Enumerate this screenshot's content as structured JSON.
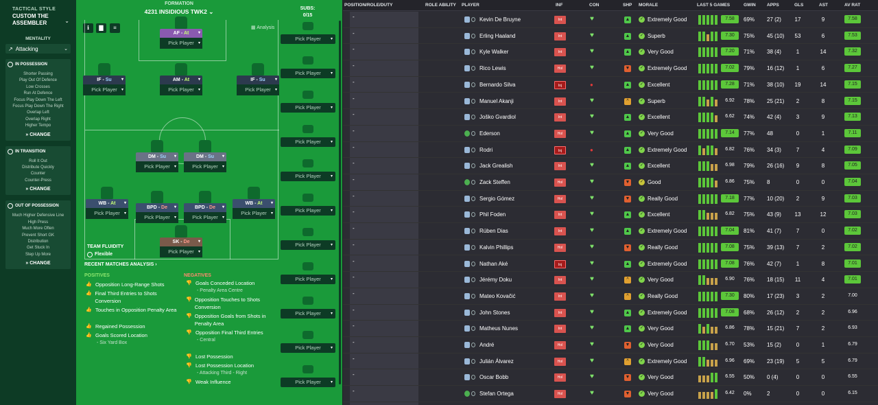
{
  "left_panel": {
    "subtitle": "TACTICAL STYLE",
    "title": "CUSTOM THE ASSEMBLER",
    "mentality_label": "MENTALITY",
    "mentality_value": "Attacking",
    "in_possession": {
      "header": "IN POSSESSION",
      "items": [
        "Shorter Passing",
        "Play Out Of Defence",
        "Low Crosses",
        "Run At Defence",
        "Focus Play Down The Left",
        "Focus Play Down The Right",
        "Overlap Left",
        "Overlap Right",
        "Higher Tempo"
      ],
      "change": "CHANGE"
    },
    "in_transition": {
      "header": "IN TRANSITION",
      "items": [
        "Roll It Out",
        "Distribute Quickly",
        "Counter",
        "Counter-Press"
      ],
      "change": "CHANGE"
    },
    "out_of_possession": {
      "header": "OUT OF POSSESSION",
      "items": [
        "Much Higher Defensive Line",
        "High Press",
        "Much More Often",
        "Prevent Short GK",
        "Distribution",
        "Get Stuck In",
        "Step Up More"
      ],
      "change": "CHANGE"
    }
  },
  "pitch": {
    "formation_label": "FORMATION",
    "formation_name": "4231 INSIDIOUS TWK2",
    "subs_label": "SUBS:",
    "subs_count": "0/15",
    "analysis_label": "Analysis",
    "pick_player": "Pick Player",
    "positions": [
      {
        "pos": "AF",
        "duty": "At",
        "duty_class": "at",
        "color": "#8a5ab0"
      },
      {
        "pos": "IF",
        "duty": "Su",
        "duty_class": "su",
        "color": "#2c3a4e"
      },
      {
        "pos": "AM",
        "duty": "At",
        "duty_class": "at",
        "color": "#2c3a4e"
      },
      {
        "pos": "IF",
        "duty": "Su",
        "duty_class": "su",
        "color": "#2c3a4e"
      },
      {
        "pos": "DM",
        "duty": "Su",
        "duty_class": "su",
        "color": "#6a7286"
      },
      {
        "pos": "DM",
        "duty": "Su",
        "duty_class": "su",
        "color": "#6a7286"
      },
      {
        "pos": "WB",
        "duty": "At",
        "duty_class": "at",
        "color": "#3b4f6e"
      },
      {
        "pos": "BPD",
        "duty": "De",
        "duty_class": "de",
        "color": "#3b4f6e"
      },
      {
        "pos": "BPD",
        "duty": "De",
        "duty_class": "de",
        "color": "#3b4f6e"
      },
      {
        "pos": "WB",
        "duty": "At",
        "duty_class": "at",
        "color": "#3b4f6e"
      },
      {
        "pos": "SK",
        "duty": "De",
        "duty_class": "de",
        "color": "#7a5a4a"
      }
    ],
    "sep": "-",
    "team_fluidity_label": "TEAM FLUIDITY",
    "team_fluidity_value": "Flexible",
    "recent_label": "RECENT MATCHES ANALYSIS ›",
    "positives_label": "POSITIVES",
    "negatives_label": "NEGATIVES",
    "positives": [
      {
        "text": "Opposition Long-Range Shots",
        "sub": ""
      },
      {
        "text": "Final Third Entries to Shots Conversion",
        "sub": ""
      },
      {
        "text": "Touches in Opposition Penalty Area",
        "sub": ""
      },
      {
        "text": "Regained Possession",
        "sub": ""
      },
      {
        "text": "Goals Scored Location",
        "sub": "- Six Yard Box"
      }
    ],
    "negatives": [
      {
        "text": "Goals Conceded Location",
        "sub": "- Penalty Area Centre"
      },
      {
        "text": "Opposition Touches to Shots Conversion",
        "sub": ""
      },
      {
        "text": "Opposition Goals from Shots in Penalty Area",
        "sub": ""
      },
      {
        "text": "Opposition Final Third Entries",
        "sub": "- Central"
      },
      {
        "text": "Lost Possession",
        "sub": ""
      },
      {
        "text": "Lost Possession Location",
        "sub": "- Attacking Third - Right"
      },
      {
        "text": "Weak Influence",
        "sub": ""
      }
    ]
  },
  "table": {
    "headers": [
      "POSITION/ROLE/DUTY",
      "ROLE ABILITY",
      "PLAYER",
      "INF",
      "CON",
      "SHP",
      "MORALE",
      "LAST 5 GAMES",
      "GWIN",
      "APPS",
      "GLS",
      "AST",
      "AV RAT"
    ],
    "dash": "-",
    "rows": [
      {
        "name": "Kevin De Bruyne",
        "inf": "Int",
        "inf_class": "i-int",
        "con": "heart",
        "shp": "up",
        "morale": "Extremely Good",
        "mor": "g",
        "bars": [
          "#5cc73a",
          "#5cc73a",
          "#5cc73a",
          "#5cc73a",
          "#5cc73a"
        ],
        "rating": "7.58",
        "rt": "green",
        "gwin": "69%",
        "apps": "27 (2)",
        "gls": "17",
        "ast": "9",
        "av": "7.58",
        "avc": "green",
        "gk": false
      },
      {
        "name": "Erling Haaland",
        "inf": "Int",
        "inf_class": "i-int",
        "con": "heart",
        "shp": "up",
        "morale": "Superb",
        "mor": "g",
        "bars": [
          "#5cc73a",
          "#5cc73a",
          "#c8a24a",
          "#5cc73a",
          "#5cc73a"
        ],
        "rating": "7.30",
        "rt": "green",
        "gwin": "75%",
        "apps": "45 (10)",
        "gls": "53",
        "ast": "6",
        "av": "7.53",
        "avc": "green",
        "gk": false
      },
      {
        "name": "Kyle Walker",
        "inf": "Int",
        "inf_class": "i-int",
        "con": "heart",
        "shp": "up",
        "morale": "Very Good",
        "mor": "g",
        "bars": [
          "#5cc73a",
          "#5cc73a",
          "#5cc73a",
          "#5cc73a",
          "#5cc73a"
        ],
        "rating": "7.20",
        "rt": "green",
        "gwin": "71%",
        "apps": "38 (4)",
        "gls": "1",
        "ast": "14",
        "av": "7.32",
        "avc": "green",
        "gk": false
      },
      {
        "name": "Rico Lewis",
        "inf": "Hol",
        "inf_class": "i-hol",
        "con": "heart",
        "shp": "dn",
        "morale": "Extremely Good",
        "mor": "g",
        "bars": [
          "#5cc73a",
          "#5cc73a",
          "#5cc73a",
          "#5cc73a",
          "#5cc73a"
        ],
        "rating": "7.02",
        "rt": "green",
        "gwin": "79%",
        "apps": "16 (12)",
        "gls": "1",
        "ast": "6",
        "av": "7.27",
        "avc": "green",
        "gk": false
      },
      {
        "name": "Bernardo Silva",
        "inf": "Inj",
        "inf_class": "i-inj",
        "con": "dot",
        "shp": "up",
        "morale": "Excellent",
        "mor": "g",
        "bars": [
          "#5cc73a",
          "#5cc73a",
          "#5cc73a",
          "#5cc73a",
          "#5cc73a"
        ],
        "rating": "7.28",
        "rt": "green",
        "gwin": "71%",
        "apps": "38 (10)",
        "gls": "19",
        "ast": "14",
        "av": "7.15",
        "avc": "green",
        "gk": false
      },
      {
        "name": "Manuel Akanji",
        "inf": "Int",
        "inf_class": "i-int",
        "con": "heart",
        "shp": "mid",
        "morale": "Superb",
        "mor": "g",
        "bars": [
          "#5cc73a",
          "#5cc73a",
          "#c8a24a",
          "#5cc73a",
          "#c8a24a"
        ],
        "rating": "6.92",
        "rt": "gray",
        "gwin": "78%",
        "apps": "25 (21)",
        "gls": "2",
        "ast": "8",
        "av": "7.15",
        "avc": "green",
        "gk": false
      },
      {
        "name": "Joško Gvardiol",
        "inf": "Int",
        "inf_class": "i-int",
        "con": "heart",
        "shp": "up",
        "morale": "Excellent",
        "mor": "g",
        "bars": [
          "#5cc73a",
          "#5cc73a",
          "#5cc73a",
          "#5cc73a",
          "#c8a24a"
        ],
        "rating": "6.62",
        "rt": "gray",
        "gwin": "74%",
        "apps": "42 (4)",
        "gls": "3",
        "ast": "9",
        "av": "7.13",
        "avc": "green",
        "gk": false
      },
      {
        "name": "Ederson",
        "inf": "Hol",
        "inf_class": "i-hol",
        "con": "heart",
        "shp": "up",
        "morale": "Very Good",
        "mor": "g",
        "bars": [
          "#5cc73a",
          "#5cc73a",
          "#5cc73a",
          "#5cc73a",
          "#5cc73a"
        ],
        "rating": "7.14",
        "rt": "green",
        "gwin": "77%",
        "apps": "48",
        "gls": "0",
        "ast": "1",
        "av": "7.11",
        "avc": "green",
        "gk": true
      },
      {
        "name": "Rodri",
        "inf": "Inj",
        "inf_class": "i-inj",
        "con": "dot",
        "shp": "up",
        "morale": "Extremely Good",
        "mor": "g",
        "bars": [
          "#5cc73a",
          "#c8a24a",
          "#5cc73a",
          "#5cc73a",
          "#c8a24a"
        ],
        "rating": "6.82",
        "rt": "gray",
        "gwin": "76%",
        "apps": "34 (3)",
        "gls": "7",
        "ast": "4",
        "av": "7.09",
        "avc": "green",
        "gk": false
      },
      {
        "name": "Jack Grealish",
        "inf": "Int",
        "inf_class": "i-int",
        "con": "heart",
        "shp": "up",
        "morale": "Excellent",
        "mor": "g",
        "bars": [
          "#5cc73a",
          "#5cc73a",
          "#5cc73a",
          "#c8a24a",
          "#c8a24a"
        ],
        "rating": "6.98",
        "rt": "gray",
        "gwin": "79%",
        "apps": "26 (16)",
        "gls": "9",
        "ast": "8",
        "av": "7.05",
        "avc": "green",
        "gk": false
      },
      {
        "name": "Zack Steffen",
        "inf": "Hol",
        "inf_class": "i-hol",
        "con": "heart",
        "shp": "dn",
        "morale": "Good",
        "mor": "y",
        "bars": [
          "#5cc73a",
          "#5cc73a",
          "#5cc73a",
          "#5cc73a",
          "#c8a24a"
        ],
        "rating": "6.86",
        "rt": "gray",
        "gwin": "75%",
        "apps": "8",
        "gls": "0",
        "ast": "0",
        "av": "7.04",
        "avc": "green",
        "gk": true
      },
      {
        "name": "Sergio Gómez",
        "inf": "Hol",
        "inf_class": "i-hol",
        "con": "heart",
        "shp": "dn",
        "morale": "Really Good",
        "mor": "g",
        "bars": [
          "#5cc73a",
          "#5cc73a",
          "#5cc73a",
          "#5cc73a",
          "#5cc73a"
        ],
        "rating": "7.18",
        "rt": "green",
        "gwin": "77%",
        "apps": "10 (20)",
        "gls": "2",
        "ast": "9",
        "av": "7.03",
        "avc": "green",
        "gk": false
      },
      {
        "name": "Phil Foden",
        "inf": "Int",
        "inf_class": "i-int",
        "con": "heart",
        "shp": "up",
        "morale": "Excellent",
        "mor": "g",
        "bars": [
          "#5cc73a",
          "#5cc73a",
          "#c8a24a",
          "#c8a24a",
          "#c8a24a"
        ],
        "rating": "6.82",
        "rt": "gray",
        "gwin": "75%",
        "apps": "43 (9)",
        "gls": "13",
        "ast": "12",
        "av": "7.03",
        "avc": "green",
        "gk": false
      },
      {
        "name": "Rúben Dias",
        "inf": "Int",
        "inf_class": "i-int",
        "con": "heart",
        "shp": "up",
        "morale": "Extremely Good",
        "mor": "g",
        "bars": [
          "#5cc73a",
          "#5cc73a",
          "#5cc73a",
          "#5cc73a",
          "#5cc73a"
        ],
        "rating": "7.04",
        "rt": "green",
        "gwin": "81%",
        "apps": "41 (7)",
        "gls": "7",
        "ast": "0",
        "av": "7.02",
        "avc": "green",
        "gk": false
      },
      {
        "name": "Kalvin Phillips",
        "inf": "Hol",
        "inf_class": "i-hol",
        "con": "heart",
        "shp": "dn",
        "morale": "Really Good",
        "mor": "g",
        "bars": [
          "#5cc73a",
          "#5cc73a",
          "#5cc73a",
          "#5cc73a",
          "#5cc73a"
        ],
        "rating": "7.08",
        "rt": "green",
        "gwin": "75%",
        "apps": "39 (13)",
        "gls": "7",
        "ast": "2",
        "av": "7.02",
        "avc": "green",
        "gk": false
      },
      {
        "name": "Nathan Aké",
        "inf": "Inj",
        "inf_class": "i-inj",
        "con": "heart",
        "shp": "up",
        "morale": "Extremely Good",
        "mor": "g",
        "bars": [
          "#5cc73a",
          "#5cc73a",
          "#5cc73a",
          "#5cc73a",
          "#5cc73a"
        ],
        "rating": "7.08",
        "rt": "green",
        "gwin": "76%",
        "apps": "42 (7)",
        "gls": "1",
        "ast": "8",
        "av": "7.01",
        "avc": "green",
        "gk": false
      },
      {
        "name": "Jérémy Doku",
        "inf": "Int",
        "inf_class": "i-int",
        "con": "heart",
        "shp": "mid",
        "morale": "Very Good",
        "mor": "g",
        "bars": [
          "#5cc73a",
          "#5cc73a",
          "#c8a24a",
          "#c8a24a",
          "#c8a24a"
        ],
        "rating": "6.90",
        "rt": "gray",
        "gwin": "76%",
        "apps": "18 (15)",
        "gls": "11",
        "ast": "4",
        "av": "7.01",
        "avc": "green",
        "gk": false
      },
      {
        "name": "Mateo Kovačić",
        "inf": "Int",
        "inf_class": "i-int",
        "con": "heart",
        "shp": "mid",
        "morale": "Really Good",
        "mor": "g",
        "bars": [
          "#5cc73a",
          "#5cc73a",
          "#5cc73a",
          "#5cc73a",
          "#5cc73a"
        ],
        "rating": "7.30",
        "rt": "green",
        "gwin": "80%",
        "apps": "17 (23)",
        "gls": "3",
        "ast": "2",
        "av": "7.00",
        "avc": "gray",
        "gk": false
      },
      {
        "name": "John Stones",
        "inf": "Int",
        "inf_class": "i-int",
        "con": "heart",
        "shp": "up",
        "morale": "Extremely Good",
        "mor": "g",
        "bars": [
          "#5cc73a",
          "#5cc73a",
          "#5cc73a",
          "#5cc73a",
          "#5cc73a"
        ],
        "rating": "7.08",
        "rt": "green",
        "gwin": "68%",
        "apps": "26 (12)",
        "gls": "2",
        "ast": "2",
        "av": "6.96",
        "avc": "gray",
        "gk": false
      },
      {
        "name": "Matheus Nunes",
        "inf": "Int",
        "inf_class": "i-int",
        "con": "heart",
        "shp": "up",
        "morale": "Very Good",
        "mor": "g",
        "bars": [
          "#5cc73a",
          "#c8a24a",
          "#5cc73a",
          "#c8a24a",
          "#c8a24a"
        ],
        "rating": "6.86",
        "rt": "gray",
        "gwin": "78%",
        "apps": "15 (21)",
        "gls": "7",
        "ast": "2",
        "av": "6.93",
        "avc": "gray",
        "gk": false
      },
      {
        "name": "André",
        "inf": "Hol",
        "inf_class": "i-hol",
        "con": "heart",
        "shp": "dn",
        "morale": "Very Good",
        "mor": "g",
        "bars": [
          "#5cc73a",
          "#5cc73a",
          "#5cc73a",
          "#c8a24a",
          "#c8a24a"
        ],
        "rating": "6.70",
        "rt": "gray",
        "gwin": "53%",
        "apps": "15 (2)",
        "gls": "0",
        "ast": "1",
        "av": "6.79",
        "avc": "gray",
        "gk": false
      },
      {
        "name": "Julián Álvarez",
        "inf": "Hol",
        "inf_class": "i-hol",
        "con": "heart",
        "shp": "mid",
        "morale": "Extremely Good",
        "mor": "g",
        "bars": [
          "#5cc73a",
          "#5cc73a",
          "#c8a24a",
          "#c8a24a",
          "#c8a24a"
        ],
        "rating": "6.96",
        "rt": "gray",
        "gwin": "69%",
        "apps": "23 (19)",
        "gls": "5",
        "ast": "5",
        "av": "6.79",
        "avc": "gray",
        "gk": false
      },
      {
        "name": "Oscar Bobb",
        "inf": "Hol",
        "inf_class": "i-hol",
        "con": "heart",
        "shp": "dn",
        "morale": "Very Good",
        "mor": "g",
        "bars": [
          "#c8a24a",
          "#c8a24a",
          "#c8a24a",
          "#5cc73a",
          "#5cc73a"
        ],
        "rating": "6.55",
        "rt": "gray",
        "gwin": "50%",
        "apps": "0 (4)",
        "gls": "0",
        "ast": "0",
        "av": "6.55",
        "avc": "gray",
        "gk": false
      },
      {
        "name": "Stefan Ortega",
        "inf": "Hol",
        "inf_class": "i-hol",
        "con": "heart",
        "shp": "dn",
        "morale": "Very Good",
        "mor": "g",
        "bars": [
          "#c8a24a",
          "#c8a24a",
          "#c8a24a",
          "#c8a24a",
          "#5cc73a"
        ],
        "rating": "6.42",
        "rt": "gray",
        "gwin": "0%",
        "apps": "2",
        "gls": "0",
        "ast": "0",
        "av": "6.15",
        "avc": "gray",
        "gk": true
      }
    ]
  }
}
